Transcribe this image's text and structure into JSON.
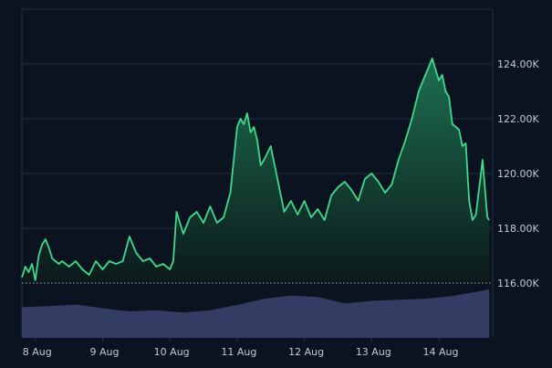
{
  "chart_data": {
    "type": "area",
    "title": "",
    "xlabel": "",
    "ylabel": "",
    "x_tick_labels": [
      "8 Aug",
      "9 Aug",
      "10 Aug",
      "11 Aug",
      "12 Aug",
      "13 Aug",
      "14 Aug"
    ],
    "y_tick_labels": [
      "116.00K",
      "118.00K",
      "120.00K",
      "122.00K",
      "124.00K"
    ],
    "y_tick_values": [
      116000,
      118000,
      120000,
      122000,
      124000
    ],
    "ylim": [
      114000,
      126000
    ],
    "xlim": [
      7.8,
      14.8
    ],
    "grid": true,
    "colors": {
      "background": "#0b1220",
      "line": "#3fd98c",
      "area_top": "#1f7a56",
      "area_bottom": "#0b1a1a",
      "volume": "#414b7a",
      "grid": "#243044",
      "baseline": "#9aa5b8"
    },
    "series": [
      {
        "x": [
          7.8,
          7.85,
          7.9,
          7.95,
          8.0,
          8.05,
          8.1,
          8.15,
          8.2,
          8.25,
          8.3,
          8.35,
          8.4,
          8.5,
          8.6,
          8.7,
          8.8,
          8.9,
          9.0,
          9.1,
          9.2,
          9.3,
          9.4,
          9.5,
          9.6,
          9.7,
          9.8,
          9.9,
          10.0,
          10.05,
          10.1,
          10.15,
          10.2,
          10.3,
          10.4,
          10.5,
          10.6,
          10.7,
          10.8,
          10.9,
          11.0,
          11.05,
          11.1,
          11.15,
          11.2,
          11.25,
          11.3,
          11.35,
          11.4,
          11.5,
          11.6,
          11.7,
          11.8,
          11.9,
          12.0,
          12.1,
          12.2,
          12.3,
          12.4,
          12.5,
          12.6,
          12.7,
          12.8,
          12.9,
          13.0,
          13.1,
          13.2,
          13.3,
          13.4,
          13.5,
          13.6,
          13.7,
          13.8,
          13.9,
          14.0,
          14.05,
          14.1,
          14.15,
          14.2,
          14.25,
          14.3,
          14.35,
          14.4,
          14.45,
          14.5,
          14.55,
          14.6,
          14.65,
          14.7,
          14.72,
          14.75
        ],
        "y": [
          116200,
          116600,
          116400,
          116700,
          116100,
          117000,
          117400,
          117600,
          117300,
          116900,
          116800,
          116700,
          116800,
          116600,
          116800,
          116500,
          116300,
          116800,
          116500,
          116800,
          116700,
          116800,
          117700,
          117100,
          116800,
          116900,
          116600,
          116700,
          116500,
          116800,
          118600,
          118200,
          117800,
          118400,
          118600,
          118200,
          118800,
          118200,
          118400,
          119300,
          121700,
          122000,
          121800,
          122200,
          121500,
          121700,
          121200,
          120300,
          120500,
          121000,
          119800,
          118600,
          119000,
          118500,
          119000,
          118400,
          118700,
          118300,
          119200,
          119500,
          119700,
          119400,
          119000,
          119800,
          120000,
          119700,
          119300,
          119600,
          120500,
          121200,
          122000,
          123000,
          123600,
          124200,
          123400,
          123600,
          123000,
          122800,
          121800,
          121700,
          121600,
          121000,
          121100,
          119000,
          118300,
          118500,
          119500,
          120500,
          119000,
          118400,
          118300
        ]
      }
    ],
    "volume_band": {
      "x": [
        7.8,
        8.2,
        8.6,
        9.0,
        9.4,
        9.8,
        10.2,
        10.6,
        11.0,
        11.4,
        11.8,
        12.2,
        12.6,
        13.0,
        13.4,
        13.8,
        14.2,
        14.6,
        14.75
      ],
      "level": [
        0.58,
        0.6,
        0.63,
        0.56,
        0.5,
        0.52,
        0.48,
        0.52,
        0.62,
        0.74,
        0.8,
        0.77,
        0.65,
        0.7,
        0.72,
        0.74,
        0.79,
        0.88,
        0.92
      ]
    }
  }
}
